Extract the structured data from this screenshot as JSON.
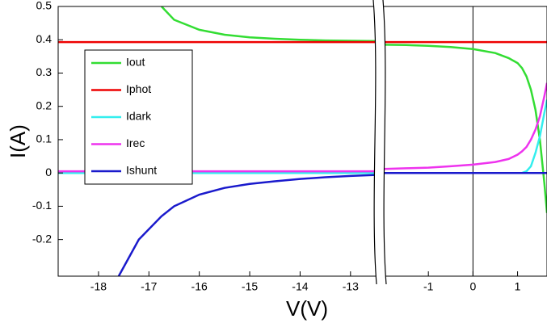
{
  "chart_data": {
    "type": "line",
    "x_label": "V(V)",
    "y_label": "I(A)",
    "x_segments": [
      {
        "xlim": [
          -18.8,
          -12.5
        ],
        "xticks": [
          -18,
          -17,
          -16,
          -15,
          -14,
          -13
        ]
      },
      {
        "xlim": [
          -2,
          1.66
        ],
        "xticks": [
          -1,
          0,
          1
        ]
      }
    ],
    "ylim": [
      -0.31,
      0.5
    ],
    "yticks": [
      -0.2,
      -0.1,
      0,
      0.1,
      0.2,
      0.3,
      0.4,
      0.5
    ],
    "reference_line": {
      "x": 0
    },
    "legend": "upper left",
    "x": [
      -18.8,
      -18.5,
      -18,
      -17.6,
      -17.2,
      -16.75,
      -16.5,
      -16,
      -15.5,
      -15,
      -14.5,
      -14,
      -13.5,
      -13,
      -12.5,
      -2,
      -1.5,
      -1,
      -0.5,
      0,
      0.5,
      0.8,
      1,
      1.1,
      1.2,
      1.3,
      1.4,
      1.5,
      1.6,
      1.66
    ],
    "series": [
      {
        "name": "Iout",
        "color": "#33dd33",
        "values": [
          null,
          null,
          null,
          null,
          null,
          0.5,
          0.46,
          0.43,
          0.415,
          0.407,
          0.403,
          0.4,
          0.398,
          0.397,
          0.396,
          0.385,
          0.384,
          0.382,
          0.378,
          0.372,
          0.36,
          0.345,
          0.33,
          0.315,
          0.29,
          0.25,
          0.19,
          0.1,
          -0.03,
          -0.12
        ]
      },
      {
        "name": "Iphot",
        "color": "#ee0000",
        "values": [
          0.393,
          0.393,
          0.393,
          0.393,
          0.393,
          0.393,
          0.393,
          0.393,
          0.393,
          0.393,
          0.393,
          0.393,
          0.393,
          0.393,
          0.393,
          0.393,
          0.393,
          0.393,
          0.393,
          0.393,
          0.393,
          0.393,
          0.393,
          0.393,
          0.393,
          0.393,
          0.393,
          0.393,
          0.393,
          0.393
        ]
      },
      {
        "name": "Idark",
        "color": "#33eeee",
        "values": [
          0,
          0,
          0,
          0,
          0,
          0,
          0,
          0,
          0,
          0,
          0,
          0,
          0,
          0,
          0,
          0,
          0,
          0,
          0,
          0,
          0,
          0,
          0,
          0,
          0.005,
          0.02,
          0.06,
          0.11,
          0.18,
          0.22
        ]
      },
      {
        "name": "Irec",
        "color": "#ee33ee",
        "values": [
          0.005,
          0.005,
          0.005,
          0.005,
          0.005,
          0.005,
          0.005,
          0.005,
          0.005,
          0.005,
          0.005,
          0.005,
          0.005,
          0.005,
          0.005,
          0.012,
          0.014,
          0.016,
          0.02,
          0.025,
          0.033,
          0.042,
          0.055,
          0.065,
          0.078,
          0.1,
          0.13,
          0.17,
          0.23,
          0.27
        ]
      },
      {
        "name": "Ishunt",
        "color": "#1a1acc",
        "values": [
          null,
          null,
          null,
          -0.31,
          -0.2,
          -0.13,
          -0.1,
          -0.065,
          -0.045,
          -0.033,
          -0.025,
          -0.018,
          -0.013,
          -0.009,
          -0.006,
          0,
          0,
          0,
          0,
          0,
          0,
          0,
          0,
          0,
          0,
          0,
          0,
          0,
          0,
          0
        ]
      }
    ]
  }
}
